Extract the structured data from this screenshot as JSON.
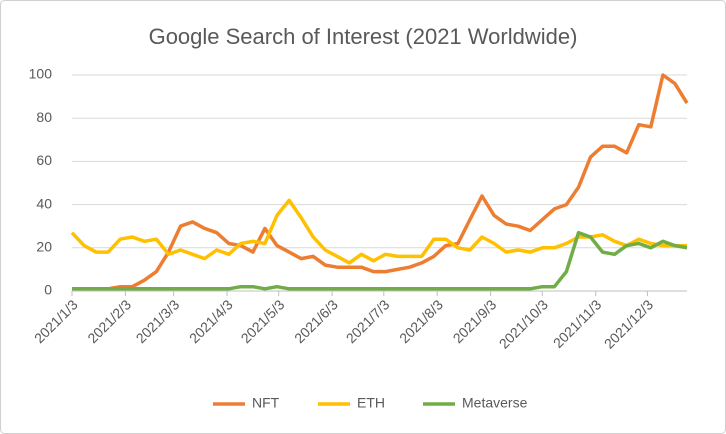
{
  "chart_data": {
    "type": "line",
    "title": "Google Search of Interest (2021 Worldwide)",
    "x": [
      "2021/1/3",
      "2021/1/10",
      "2021/1/17",
      "2021/1/24",
      "2021/1/31",
      "2021/2/7",
      "2021/2/14",
      "2021/2/21",
      "2021/2/28",
      "2021/3/7",
      "2021/3/14",
      "2021/3/21",
      "2021/3/28",
      "2021/4/4",
      "2021/4/11",
      "2021/4/18",
      "2021/4/25",
      "2021/5/2",
      "2021/5/9",
      "2021/5/16",
      "2021/5/23",
      "2021/5/30",
      "2021/6/6",
      "2021/6/13",
      "2021/6/20",
      "2021/6/27",
      "2021/7/4",
      "2021/7/11",
      "2021/7/18",
      "2021/7/25",
      "2021/8/1",
      "2021/8/8",
      "2021/8/15",
      "2021/8/22",
      "2021/8/29",
      "2021/9/5",
      "2021/9/12",
      "2021/9/19",
      "2021/9/26",
      "2021/10/3",
      "2021/10/10",
      "2021/10/17",
      "2021/10/24",
      "2021/10/31",
      "2021/11/7",
      "2021/11/14",
      "2021/11/21",
      "2021/11/28",
      "2021/12/5",
      "2021/12/12",
      "2021/12/19",
      "2021/12/26"
    ],
    "series": [
      {
        "name": "NFT",
        "color": "#ed7d31",
        "values": [
          1,
          1,
          1,
          1,
          2,
          2,
          5,
          9,
          18,
          30,
          32,
          29,
          27,
          22,
          21,
          18,
          29,
          21,
          18,
          15,
          16,
          12,
          11,
          11,
          11,
          9,
          9,
          10,
          11,
          13,
          16,
          21,
          22,
          33,
          44,
          35,
          31,
          30,
          28,
          33,
          38,
          40,
          48,
          62,
          67,
          67,
          64,
          77,
          76,
          100,
          96,
          87
        ]
      },
      {
        "name": "ETH",
        "color": "#ffc000",
        "values": [
          27,
          21,
          18,
          18,
          24,
          25,
          23,
          24,
          17,
          19,
          17,
          15,
          19,
          17,
          22,
          23,
          22,
          35,
          42,
          34,
          25,
          19,
          16,
          13,
          17,
          14,
          17,
          16,
          16,
          16,
          24,
          24,
          20,
          19,
          25,
          22,
          18,
          19,
          18,
          20,
          20,
          22,
          25,
          25,
          26,
          23,
          21,
          24,
          22,
          21,
          21,
          21
        ]
      },
      {
        "name": "Metaverse",
        "color": "#70ad47",
        "values": [
          1,
          1,
          1,
          1,
          1,
          1,
          1,
          1,
          1,
          1,
          1,
          1,
          1,
          1,
          2,
          2,
          1,
          2,
          1,
          1,
          1,
          1,
          1,
          1,
          1,
          1,
          1,
          1,
          1,
          1,
          1,
          1,
          1,
          1,
          1,
          1,
          1,
          1,
          1,
          2,
          2,
          9,
          27,
          25,
          18,
          17,
          21,
          22,
          20,
          23,
          21,
          20
        ]
      }
    ],
    "xlim": [
      "2021/1/3",
      "2021/12/26"
    ],
    "xticks": [
      "2021/1/3",
      "2021/2/3",
      "2021/3/3",
      "2021/4/3",
      "2021/5/3",
      "2021/6/3",
      "2021/7/3",
      "2021/8/3",
      "2021/9/3",
      "2021/10/3",
      "2021/11/3",
      "2021/12/3"
    ],
    "ylim": [
      0,
      100
    ],
    "yticks": [
      0,
      20,
      40,
      60,
      80,
      100
    ],
    "grid": true,
    "legend": "bottom"
  }
}
